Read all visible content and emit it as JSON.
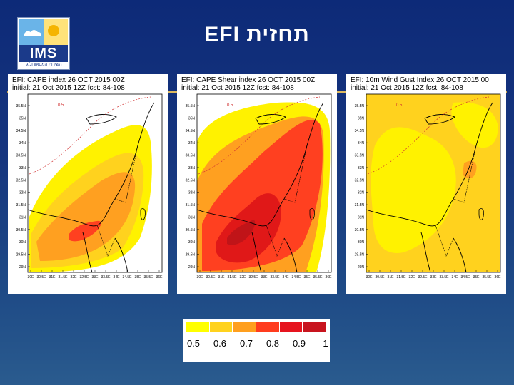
{
  "header": {
    "title": "תחזית EFI",
    "logo_text": "IMS",
    "logo_subtext": "השירות המטאורולוגי"
  },
  "panels": [
    {
      "line1": "EFI: CAPE index 26 OCT 2015 00Z",
      "line2": "initial: 21 Oct 2015 12Z   fcst: 84-108"
    },
    {
      "line1": "EFI: CAPE Shear index 26 OCT 2015 00Z",
      "line2": "initial: 21 Oct 2015 12Z   fcst: 84-108"
    },
    {
      "line1": "EFI: 10m Wind Gust Index 26 OCT 2015 00",
      "line2": "initial: 21 Oct 2015 12Z   fcst: 84-108"
    }
  ],
  "lat_labels": [
    "35.5N",
    "35N",
    "34.5N",
    "34N",
    "33.5N",
    "33N",
    "32.5N",
    "32N",
    "31.5N",
    "31N",
    "30.5N",
    "30N",
    "29.5N",
    "29N"
  ],
  "lon_labels": [
    "30E",
    "30.5E",
    "31E",
    "31.5E",
    "32E",
    "32.5E",
    "33E",
    "33.5E",
    "34E",
    "34.5E",
    "35E",
    "35.5E",
    "36E"
  ],
  "contour_label": "0.5",
  "legend": {
    "labels": [
      "0.5",
      "0.6",
      "0.7",
      "0.8",
      "0.9",
      "1"
    ],
    "colors": [
      "#ffff00",
      "#ffd21e",
      "#ff9f1e",
      "#ff3c1e",
      "#e6141e",
      "#c8141e"
    ]
  },
  "colors": {
    "y1": "#fff200",
    "y2": "#ffd21e",
    "o1": "#ffa020",
    "r1": "#ff4020",
    "r2": "#e01818",
    "r3": "#c01418"
  }
}
